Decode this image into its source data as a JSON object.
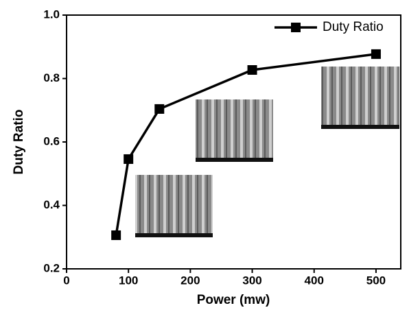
{
  "chart_data": {
    "type": "line",
    "x_label": "Power (mw)",
    "y_label": "Duty Ratio",
    "x": [
      80,
      100,
      150,
      300,
      500
    ],
    "series": [
      {
        "name": "Duty Ratio",
        "color": "#000000",
        "values": [
          0.306,
          0.546,
          0.704,
          0.827,
          0.877
        ]
      }
    ],
    "xlim": [
      0,
      540
    ],
    "xticks": [
      0,
      100,
      200,
      300,
      400,
      500
    ],
    "ylim": [
      0.2,
      1.0
    ],
    "yticks": [
      0.2,
      0.4,
      0.6,
      0.8,
      {
        "value": 1.0,
        "label": "1.0"
      }
    ],
    "legend": "upper right",
    "grid": false
  }
}
